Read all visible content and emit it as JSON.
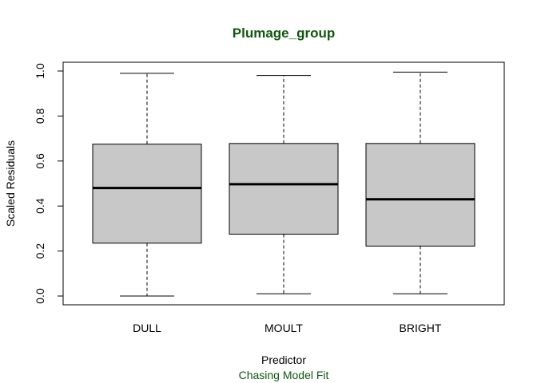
{
  "chart_data": {
    "type": "boxplot",
    "title": "Plumage_group",
    "xlabel": "Predictor",
    "subtitle": "Chasing Model Fit",
    "ylabel": "Scaled Residuals",
    "ylim": [
      0,
      1
    ],
    "yticks": [
      "0.0",
      "0.2",
      "0.4",
      "0.6",
      "0.8",
      "1.0"
    ],
    "categories": [
      "DULL",
      "MOULT",
      "BRIGHT"
    ],
    "boxes": [
      {
        "category": "DULL",
        "min": 0.0,
        "q1": 0.235,
        "median": 0.48,
        "q3": 0.675,
        "max": 0.99
      },
      {
        "category": "MOULT",
        "min": 0.01,
        "q1": 0.275,
        "median": 0.497,
        "q3": 0.678,
        "max": 0.98
      },
      {
        "category": "BRIGHT",
        "min": 0.01,
        "q1": 0.222,
        "median": 0.43,
        "q3": 0.678,
        "max": 0.995
      }
    ],
    "grid": false,
    "legend": "none",
    "colors": {
      "box_fill": "#c8c8c8",
      "title": "#0b5a0b",
      "subtitle": "#0b5a0b"
    }
  }
}
